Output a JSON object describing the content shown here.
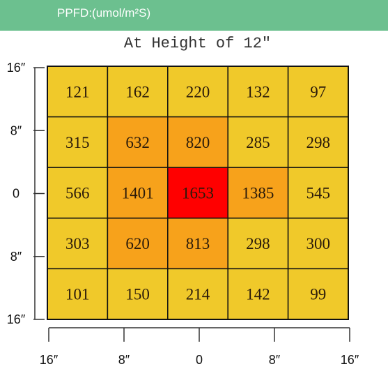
{
  "header": {
    "label": "PPFD:(umol/m²S)"
  },
  "colors": {
    "header_bg": "#6cc08f",
    "low": "#f0c92a",
    "mid": "#f7a21b",
    "high": "#ff0000",
    "grid_line": "#111111"
  },
  "chart_data": {
    "type": "heatmap",
    "title": "At Height of 12″",
    "x_ticks": [
      "16″",
      "8″",
      "0",
      "8″",
      "16″"
    ],
    "y_ticks": [
      "16″",
      "8″",
      "0",
      "8″",
      "16″"
    ],
    "rows": [
      [
        121,
        162,
        220,
        132,
        97
      ],
      [
        315,
        632,
        820,
        285,
        298
      ],
      [
        566,
        1401,
        1653,
        1385,
        545
      ],
      [
        303,
        620,
        813,
        298,
        300
      ],
      [
        101,
        150,
        214,
        142,
        99
      ]
    ]
  }
}
